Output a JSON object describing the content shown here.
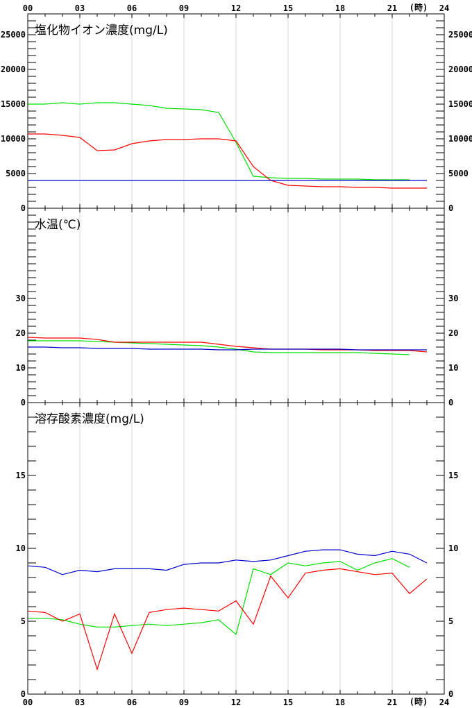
{
  "x_axis": {
    "tick_labels": [
      "00",
      "03",
      "06",
      "09",
      "12",
      "15",
      "18",
      "21",
      "24"
    ],
    "unit_label": "(時)"
  },
  "chart_data": [
    {
      "type": "line",
      "title": "塩化物イオン濃度(mg/L)",
      "ylim": [
        0,
        28000
      ],
      "yticks": [
        0,
        5000,
        10000,
        15000,
        20000,
        25000
      ],
      "x": [
        0,
        1,
        2,
        3,
        4,
        5,
        6,
        7,
        8,
        9,
        10,
        11,
        12,
        13,
        14,
        15,
        16,
        17,
        18,
        19,
        20,
        21,
        22,
        23
      ],
      "series": [
        {
          "color": "#00dd00",
          "values": [
            15000,
            15000,
            15200,
            15000,
            15200,
            15200,
            15000,
            14800,
            14400,
            14300,
            14200,
            13800,
            9500,
            4600,
            4400,
            4300,
            4300,
            4200,
            4200,
            4200,
            4100,
            4100,
            4100,
            null
          ]
        },
        {
          "color": "#ff0000",
          "values": [
            10700,
            10700,
            10500,
            10200,
            8300,
            8400,
            9300,
            9700,
            9900,
            9900,
            10000,
            10000,
            9700,
            6000,
            4000,
            3300,
            3200,
            3100,
            3100,
            3000,
            3000,
            2900,
            2900,
            2900
          ]
        },
        {
          "color": "#0000cc",
          "values": [
            4000,
            4000,
            4000,
            4000,
            4000,
            4000,
            4000,
            4000,
            4000,
            4000,
            4000,
            4000,
            4000,
            4000,
            4000,
            4000,
            4000,
            4000,
            4000,
            4000,
            4000,
            4000,
            4000,
            4000
          ]
        }
      ]
    },
    {
      "type": "line",
      "title": "水温(℃)",
      "ylim": [
        0,
        56
      ],
      "yticks": [
        0,
        10,
        20,
        30
      ],
      "x": [
        0,
        1,
        2,
        3,
        4,
        5,
        6,
        7,
        8,
        9,
        10,
        11,
        12,
        13,
        14,
        15,
        16,
        17,
        18,
        19,
        20,
        21,
        22,
        23
      ],
      "series": [
        {
          "color": "#00dd00",
          "values": [
            17.8,
            17.8,
            17.8,
            17.8,
            17.6,
            17.4,
            17.2,
            17.0,
            16.8,
            16.6,
            16.4,
            16.0,
            15.4,
            14.6,
            14.4,
            14.4,
            14.4,
            14.4,
            14.4,
            14.4,
            14.2,
            14.0,
            13.8,
            null
          ]
        },
        {
          "color": "#ff0000",
          "values": [
            18.8,
            18.6,
            18.6,
            18.6,
            18.2,
            17.4,
            17.4,
            17.4,
            17.4,
            17.4,
            17.4,
            16.8,
            16.2,
            15.8,
            15.4,
            15.4,
            15.4,
            15.2,
            15.2,
            15.2,
            15.0,
            15.0,
            15.0,
            14.6
          ]
        },
        {
          "color": "#0000cc",
          "values": [
            16.0,
            16.0,
            15.8,
            15.8,
            15.6,
            15.6,
            15.6,
            15.4,
            15.4,
            15.4,
            15.4,
            15.2,
            15.2,
            15.4,
            15.4,
            15.4,
            15.4,
            15.4,
            15.4,
            15.2,
            15.2,
            15.2,
            15.2,
            15.2
          ]
        }
      ]
    },
    {
      "type": "line",
      "title": "溶存酸素濃度(mg/L)",
      "ylim": [
        0,
        20
      ],
      "yticks": [
        0,
        5,
        10,
        15
      ],
      "x": [
        0,
        1,
        2,
        3,
        4,
        5,
        6,
        7,
        8,
        9,
        10,
        11,
        12,
        13,
        14,
        15,
        16,
        17,
        18,
        19,
        20,
        21,
        22,
        23
      ],
      "series": [
        {
          "color": "#0000cc",
          "values": [
            8.8,
            8.7,
            8.2,
            8.5,
            8.4,
            8.6,
            8.6,
            8.6,
            8.5,
            8.9,
            9.0,
            9.0,
            9.2,
            9.1,
            9.2,
            9.5,
            9.8,
            9.9,
            9.9,
            9.6,
            9.5,
            9.8,
            9.6,
            9.0
          ]
        },
        {
          "color": "#00dd00",
          "values": [
            5.2,
            5.2,
            5.1,
            4.8,
            4.6,
            4.6,
            4.7,
            4.8,
            4.7,
            4.8,
            4.9,
            5.1,
            4.1,
            8.6,
            8.2,
            9.0,
            8.8,
            9.0,
            9.1,
            8.5,
            9.0,
            9.3,
            8.7,
            null
          ]
        },
        {
          "color": "#ff0000",
          "values": [
            5.7,
            5.6,
            5.0,
            5.5,
            1.7,
            5.5,
            2.8,
            5.6,
            5.8,
            5.9,
            5.8,
            5.7,
            6.4,
            4.8,
            8.1,
            6.6,
            8.3,
            8.5,
            8.6,
            8.4,
            8.2,
            8.3,
            6.9,
            7.9
          ]
        }
      ]
    }
  ]
}
